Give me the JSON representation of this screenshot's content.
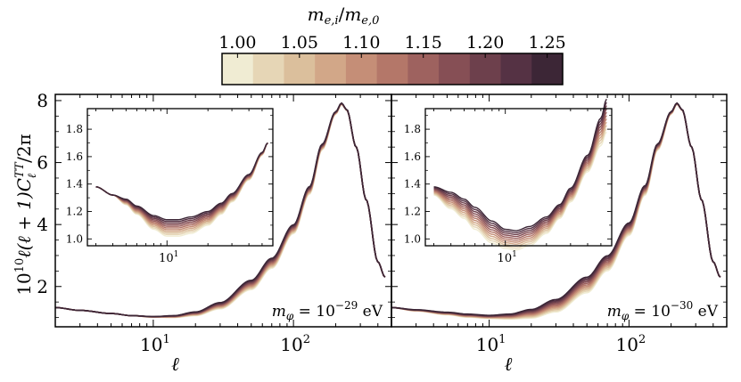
{
  "colorbar": {
    "label": "m_{e,i}/m_{e,0}",
    "label_main": "m",
    "label_sub_num": "e,i",
    "label_slash": "/",
    "label_sub_den": "e,0",
    "ticks": [
      "1.00",
      "1.05",
      "1.10",
      "1.15",
      "1.20",
      "1.25"
    ],
    "range": [
      0.9875,
      1.2625
    ],
    "num_colors": 11,
    "colors": [
      "#f0ecd3",
      "#e6d6b6",
      "#dbbf9c",
      "#d2a788",
      "#c58e77",
      "#b47769",
      "#9e625f",
      "#864f55",
      "#6d404c",
      "#553244",
      "#3c2636"
    ]
  },
  "ylabel": "10^{10} ℓ(ℓ+1) C_ℓ^{TT} / 2π",
  "ylabel_parts": {
    "pow": "10",
    "exp": "10",
    "body": "ℓ(ℓ + 1)",
    "c": "C",
    "sup": "TT",
    "sub": "ℓ",
    "tail": "/2π"
  },
  "chart_data": [
    {
      "type": "line",
      "panel": "left",
      "xlabel": "ℓ",
      "xscale": "log",
      "xlim": [
        2,
        500
      ],
      "ylim": [
        0.7,
        8.2
      ],
      "yticks": [
        "2",
        "4",
        "6",
        "8"
      ],
      "xticks": [
        {
          "base": "10",
          "exp": "1",
          "value": 10
        },
        {
          "base": "10",
          "exp": "2",
          "value": 100
        }
      ],
      "annotation": {
        "text": "m_φ = 10^{-29} eV",
        "lhs": "m",
        "sub": "φ",
        "eq": " = 10",
        "exp": "−29",
        "unit": " eV"
      },
      "series_note": "11 curves colored by m_e ratio 1.00–1.25; main peak ~7.9 at ℓ≈220",
      "x": [
        2,
        3,
        5,
        7,
        10,
        14,
        20,
        30,
        50,
        70,
        100,
        130,
        160,
        200,
        220,
        240,
        280,
        330,
        400,
        450
      ],
      "base_curve": [
        1.32,
        1.23,
        1.13,
        1.06,
        1.02,
        1.03,
        1.12,
        1.38,
        2.05,
        2.75,
        3.85,
        5.1,
        6.5,
        7.6,
        7.9,
        7.7,
        6.5,
        4.8,
        2.8,
        2.3
      ],
      "variation": [
        0,
        0,
        0,
        0,
        0.01,
        0.03,
        0.06,
        0.1,
        0.15,
        0.16,
        0.14,
        0.12,
        0.09,
        0.04,
        0.02,
        0.01,
        0,
        0,
        0,
        0
      ],
      "inset": {
        "xlim": [
          2.6,
          60
        ],
        "ylim": [
          0.95,
          1.95
        ],
        "yticks": [
          "1.0",
          "1.2",
          "1.4",
          "1.6",
          "1.8"
        ],
        "xtick": {
          "base": "10",
          "exp": "1",
          "value": 10
        },
        "x": [
          3,
          4,
          5,
          6,
          8,
          10,
          12,
          15,
          20,
          25,
          30,
          40,
          50,
          55
        ],
        "base_curve": [
          1.38,
          1.32,
          1.27,
          1.21,
          1.12,
          1.08,
          1.08,
          1.1,
          1.15,
          1.22,
          1.3,
          1.45,
          1.62,
          1.7
        ],
        "variation": [
          0,
          0,
          0.02,
          0.03,
          0.05,
          0.06,
          0.06,
          0.06,
          0.05,
          0.04,
          0.03,
          0.02,
          0.01,
          0
        ]
      }
    },
    {
      "type": "line",
      "panel": "right",
      "xlabel": "ℓ",
      "xscale": "log",
      "xlim": [
        2,
        500
      ],
      "ylim": [
        0.7,
        8.2
      ],
      "yticks": [
        "2",
        "4",
        "6",
        "8"
      ],
      "xticks": [
        {
          "base": "10",
          "exp": "1",
          "value": 10
        },
        {
          "base": "10",
          "exp": "2",
          "value": 100
        }
      ],
      "annotation": {
        "text": "m_φ = 10^{-30} eV",
        "lhs": "m",
        "sub": "φ",
        "eq": " = 10",
        "exp": "−30",
        "unit": " eV"
      },
      "series_note": "11 curves colored by m_e ratio 1.00–1.25; main peak ~7.9 at ℓ≈220",
      "x": [
        2,
        3,
        5,
        7,
        10,
        14,
        20,
        30,
        50,
        70,
        100,
        130,
        160,
        200,
        220,
        240,
        280,
        330,
        400,
        450
      ],
      "base_curve": [
        1.32,
        1.23,
        1.13,
        1.06,
        1.02,
        1.03,
        1.12,
        1.38,
        2.05,
        2.75,
        3.85,
        5.1,
        6.5,
        7.6,
        7.9,
        7.7,
        6.5,
        4.8,
        2.8,
        2.3
      ],
      "variation": [
        0,
        0.02,
        0.04,
        0.05,
        0.05,
        0.08,
        0.14,
        0.2,
        0.25,
        0.24,
        0.2,
        0.15,
        0.1,
        0.04,
        0.02,
        0.01,
        0,
        0,
        0,
        0
      ],
      "inset": {
        "xlim": [
          2.6,
          60
        ],
        "ylim": [
          0.95,
          1.95
        ],
        "yticks": [
          "1.0",
          "1.2",
          "1.4",
          "1.6",
          "1.8"
        ],
        "xtick": {
          "base": "10",
          "exp": "1",
          "value": 10
        },
        "x": [
          3,
          4,
          5,
          6,
          8,
          10,
          12,
          15,
          20,
          25,
          30,
          40,
          50,
          55
        ],
        "base_curve": [
          1.35,
          1.28,
          1.22,
          1.15,
          1.05,
          1.0,
          0.99,
          1.02,
          1.1,
          1.2,
          1.32,
          1.55,
          1.78,
          1.9
        ],
        "variation": [
          0.03,
          0.06,
          0.07,
          0.08,
          0.08,
          0.07,
          0.07,
          0.07,
          0.06,
          0.05,
          0.05,
          0.06,
          0.1,
          0.12
        ]
      }
    }
  ]
}
